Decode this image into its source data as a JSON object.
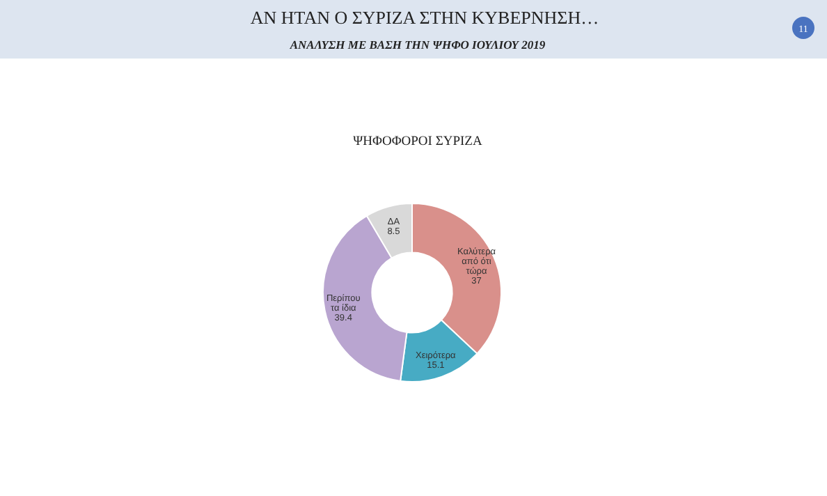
{
  "chart_data": {
    "type": "donut",
    "title": "ΑΝ ΗΤΑΝ Ο ΣΥΡΙΖΑ ΣΤΗΝ ΚΥΒΕΡΝΗΣΗ…",
    "subtitle": "ΑΝΑΛΥΣΗ ΜΕ ΒΑΣΗ ΤΗΝ ΨΗΦΟ ΙΟΥΛΙΟΥ 2019",
    "annotations": [
      "ΨΗΦΟΦΟΡΟΙ ΣΥΡΙΖΑ",
      "11"
    ],
    "categories": [
      "Καλύτερα από ότι τώρα",
      "Χειρότερα",
      "Περίπου τα ίδια",
      "ΔΑ"
    ],
    "values": [
      37,
      15.1,
      39.4,
      8.5
    ],
    "colors": [
      "#d9908b",
      "#47abc4",
      "#b9a5d0",
      "#d9d9d9"
    ],
    "data_labels": true
  }
}
